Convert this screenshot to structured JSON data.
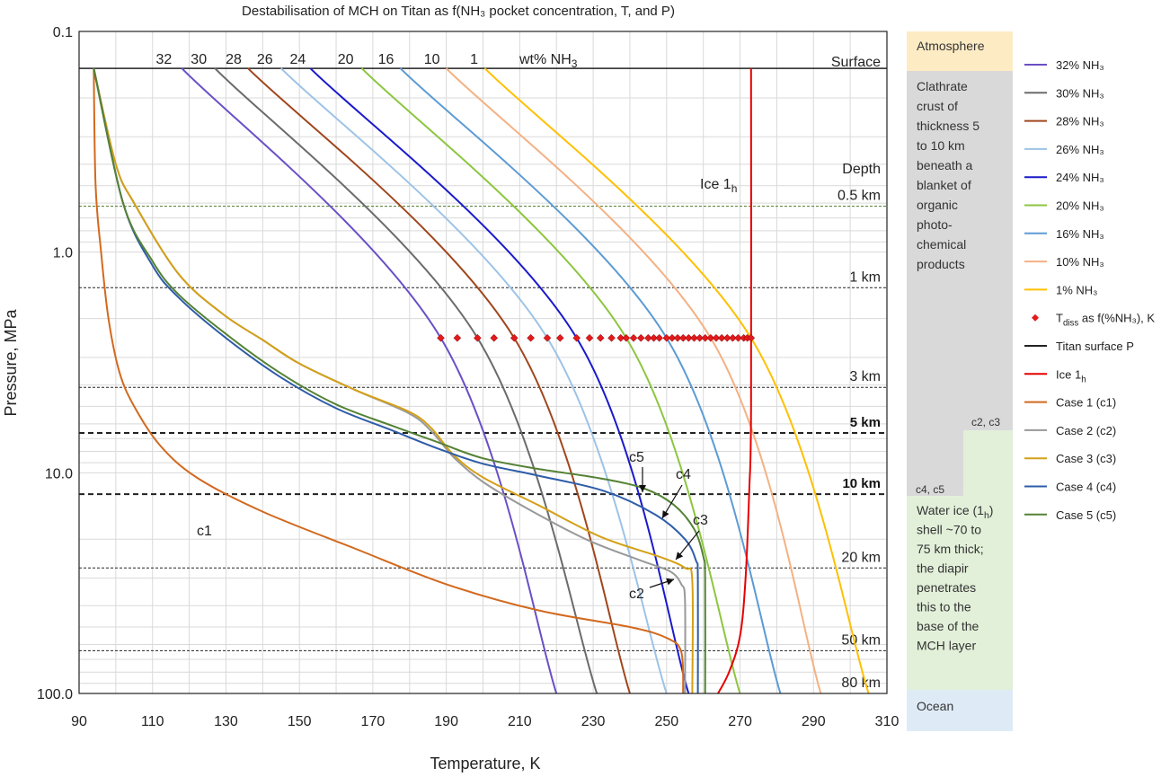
{
  "chart_data": {
    "type": "line",
    "title": "Destabilisation of MCH on Titan as f(NH₃ pocket concentration, T, and P)",
    "xlabel": "Temperature, K",
    "ylabel": "Pressure, MPa",
    "xlim": [
      90,
      310
    ],
    "ylim": [
      0.1,
      100
    ],
    "yscale": "log",
    "x_ticks": [
      "90",
      "110",
      "130",
      "150",
      "170",
      "190",
      "210",
      "230",
      "250",
      "270",
      "290",
      "310"
    ],
    "y_ticks": [
      "0.1",
      "1.0",
      "10.0",
      "100.0"
    ],
    "grid": true,
    "top_labels": {
      "ammonia_labels": [
        "32",
        "30",
        "28",
        "26",
        "24",
        "20",
        "16",
        "10",
        "1"
      ],
      "unit_label": "wt% NH₃"
    },
    "surface_label": "Surface",
    "ice_label": "Ice 1",
    "ice_label_sub": "h",
    "depth_header": "Depth",
    "depth_lines": [
      {
        "label": "0.5 km",
        "p": 0.62,
        "style": "dotted-green",
        "bold": false
      },
      {
        "label": "1 km",
        "p": 1.45,
        "style": "dotted",
        "bold": false
      },
      {
        "label": "3 km",
        "p": 4.1,
        "style": "dotted",
        "bold": false
      },
      {
        "label": "5 km",
        "p": 6.6,
        "style": "dashed",
        "bold": true
      },
      {
        "label": "10 km",
        "p": 12.5,
        "style": "dashed",
        "bold": true
      },
      {
        "label": "20 km",
        "p": 27,
        "style": "dotted",
        "bold": false
      },
      {
        "label": "50 km",
        "p": 64,
        "style": "dotted",
        "bold": false
      },
      {
        "label": "80 km",
        "p": 100,
        "style": "dotted",
        "bold": false
      }
    ],
    "surface_pressure": 0.147,
    "nh3_series": [
      {
        "name": "32% NH₃",
        "color": "#6a4fc7",
        "points": [
          [
            118,
            0.147
          ],
          [
            188.5,
            2.45
          ],
          [
            220,
            100
          ]
        ]
      },
      {
        "name": "30% NH₃",
        "color": "#6b6b6b",
        "points": [
          [
            127,
            0.147
          ],
          [
            198.5,
            2.45
          ],
          [
            231,
            100
          ]
        ]
      },
      {
        "name": "28% NH₃",
        "color": "#a0461c",
        "points": [
          [
            136,
            0.147
          ],
          [
            208.5,
            2.45
          ],
          [
            240,
            100
          ]
        ]
      },
      {
        "name": "26% NH₃",
        "color": "#9dc3e6",
        "points": [
          [
            145,
            0.147
          ],
          [
            217.5,
            2.45
          ],
          [
            250,
            100
          ]
        ]
      },
      {
        "name": "24% NH₃",
        "color": "#1a1acc",
        "points": [
          [
            153,
            0.147
          ],
          [
            225.5,
            2.45
          ],
          [
            256,
            100
          ]
        ]
      },
      {
        "name": "20% NH₃",
        "color": "#8cc63f",
        "points": [
          [
            167,
            0.147
          ],
          [
            239,
            2.45
          ],
          [
            270,
            100
          ]
        ]
      },
      {
        "name": "16% NH₃",
        "color": "#5b9bd5",
        "points": [
          [
            177.5,
            0.147
          ],
          [
            250,
            2.45
          ],
          [
            281,
            100
          ]
        ]
      },
      {
        "name": "10% NH₃",
        "color": "#f4b183",
        "points": [
          [
            190,
            0.147
          ],
          [
            262,
            2.45
          ],
          [
            292,
            100
          ]
        ]
      },
      {
        "name": "1% NH₃",
        "color": "#ffc000",
        "points": [
          [
            200.5,
            0.147
          ],
          [
            273,
            2.45
          ],
          [
            305,
            100
          ]
        ]
      }
    ],
    "tdiss": {
      "name": "T",
      "name_sub": "diss",
      "name_suffix": " as f(%NH₃), K",
      "color": "#e31a1c",
      "p": 2.45,
      "t": [
        188.5,
        193,
        198.5,
        203,
        208.5,
        213,
        217.5,
        221,
        225.5,
        229,
        232,
        235,
        237.5,
        239,
        241,
        243,
        245,
        246.5,
        248,
        250,
        251.5,
        253,
        254.5,
        256,
        257.5,
        259,
        260.5,
        262,
        263.5,
        265,
        266.5,
        268,
        269.5,
        271,
        272,
        273
      ]
    },
    "surface_series": {
      "name": "Titan surface P",
      "color": "#222222"
    },
    "ice_series": {
      "name": "Ice 1",
      "name_sub": "h",
      "color": "#e60000",
      "points": [
        [
          273,
          0.147
        ],
        [
          273,
          5
        ],
        [
          272.5,
          12
        ],
        [
          271.5,
          30
        ],
        [
          270,
          55
        ],
        [
          267,
          80
        ],
        [
          264,
          100
        ]
      ]
    },
    "case_series": [
      {
        "name": "Case 1 (c1)",
        "label": "c1",
        "color": "#d2691e",
        "points": [
          [
            94,
            0.147
          ],
          [
            94.5,
            0.5
          ],
          [
            96,
            1.0
          ],
          [
            98,
            2
          ],
          [
            101,
            3.5
          ],
          [
            105,
            5
          ],
          [
            112,
            7.5
          ],
          [
            122,
            10.5
          ],
          [
            140,
            15
          ],
          [
            165,
            22
          ],
          [
            190,
            32
          ],
          [
            215,
            42
          ],
          [
            240,
            50
          ],
          [
            250,
            56
          ],
          [
            254,
            65
          ],
          [
            254.5,
            100
          ]
        ]
      },
      {
        "name": "Case 2 (c2)",
        "label": "c2",
        "color": "#999999",
        "points": [
          [
            94,
            0.147
          ],
          [
            100,
            0.4
          ],
          [
            105,
            0.6
          ],
          [
            117,
            1.25
          ],
          [
            129,
            1.9
          ],
          [
            140,
            2.5
          ],
          [
            150,
            3.2
          ],
          [
            165,
            4.2
          ],
          [
            180,
            5.4
          ],
          [
            186,
            6.5
          ],
          [
            192,
            8.5
          ],
          [
            200,
            11
          ],
          [
            212,
            14.5
          ],
          [
            228,
            20
          ],
          [
            243,
            25
          ],
          [
            251,
            28
          ],
          [
            254,
            32
          ],
          [
            255,
            38
          ],
          [
            255,
            100
          ]
        ]
      },
      {
        "name": "Case 3 (c3)",
        "label": "c3",
        "color": "#d4a017",
        "points": [
          [
            94,
            0.147
          ],
          [
            100,
            0.4
          ],
          [
            105,
            0.6
          ],
          [
            117,
            1.25
          ],
          [
            129,
            1.9
          ],
          [
            140,
            2.5
          ],
          [
            150,
            3.2
          ],
          [
            165,
            4.2
          ],
          [
            180,
            5.3
          ],
          [
            186,
            6.3
          ],
          [
            192,
            8.3
          ],
          [
            200,
            10.5
          ],
          [
            215,
            14
          ],
          [
            232,
            19.5
          ],
          [
            248,
            24
          ],
          [
            255,
            27
          ],
          [
            257,
            31
          ],
          [
            257,
            100
          ]
        ]
      },
      {
        "name": "Case 4 (c4)",
        "label": "c4",
        "color": "#2e5ca8",
        "points": [
          [
            94,
            0.147
          ],
          [
            102,
            0.6
          ],
          [
            110,
            1.15
          ],
          [
            117,
            1.6
          ],
          [
            130,
            2.45
          ],
          [
            145,
            3.7
          ],
          [
            160,
            5.1
          ],
          [
            175,
            6.4
          ],
          [
            188,
            7.8
          ],
          [
            200,
            9.1
          ],
          [
            215,
            10.3
          ],
          [
            233,
            12.1
          ],
          [
            247,
            15.5
          ],
          [
            255,
            20
          ],
          [
            258,
            25
          ],
          [
            258.5,
            30
          ],
          [
            258.5,
            100
          ]
        ]
      },
      {
        "name": "Case 5 (c5)",
        "label": "c5",
        "color": "#548235",
        "points": [
          [
            94,
            0.147
          ],
          [
            102,
            0.6
          ],
          [
            110,
            1.1
          ],
          [
            117,
            1.55
          ],
          [
            130,
            2.35
          ],
          [
            145,
            3.55
          ],
          [
            160,
            4.9
          ],
          [
            175,
            6.1
          ],
          [
            188,
            7.3
          ],
          [
            200,
            8.6
          ],
          [
            215,
            9.6
          ],
          [
            232,
            10.6
          ],
          [
            244,
            11.8
          ],
          [
            252,
            14
          ],
          [
            257.5,
            18
          ],
          [
            260,
            24
          ],
          [
            260.5,
            30
          ],
          [
            260.5,
            100
          ]
        ]
      }
    ],
    "case_labels": {
      "c1": "c1",
      "c2": "c2",
      "c3": "c3",
      "c4": "c4",
      "c5": "c5"
    }
  },
  "side_panel": {
    "atmosphere": "Atmosphere",
    "crust_lines": [
      "Clathrate",
      "crust of",
      "thickness 5",
      "to 10 km",
      "beneath a",
      "blanket of",
      "organic",
      "photo-",
      "chemical",
      "products"
    ],
    "step_upper": "c2, c3",
    "step_lower": "c4, c5",
    "water_lines": [
      "Water ice (1",
      "shell ~70 to",
      "75 km thick;",
      "the diapir",
      "penetrates",
      "this to the",
      "base of the",
      "MCH layer"
    ],
    "water_sub": "h",
    "water_suffix": ")",
    "ocean": "Ocean",
    "colors": {
      "atmosphere": "#fdebc4",
      "crust": "#d9d9d9",
      "water": "#e2f0d9",
      "ocean": "#deebf7"
    }
  }
}
